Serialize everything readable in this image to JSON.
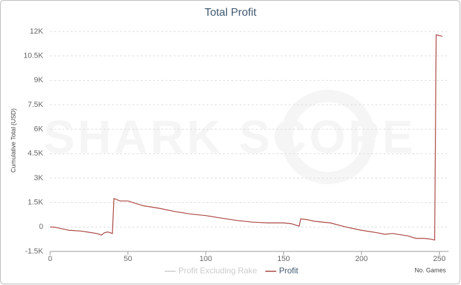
{
  "chart_data": {
    "type": "line",
    "title": "Total Profit",
    "watermark": "SHARK SCOPE",
    "x_label": "No. Games",
    "y_label": "Cumulative Total (USD)",
    "x": [
      0,
      3,
      7,
      10,
      12,
      20,
      30,
      33,
      35,
      37,
      40,
      41,
      45,
      50,
      55,
      60,
      70,
      80,
      90,
      100,
      110,
      120,
      130,
      140,
      150,
      155,
      160,
      161,
      165,
      170,
      180,
      190,
      200,
      210,
      215,
      220,
      230,
      235,
      240,
      245,
      247,
      248,
      252
    ],
    "series": [
      {
        "name": "Profit Excluding Rake",
        "color": "#cccccc",
        "visible": false
      },
      {
        "name": "Profit",
        "color": "#a8403a",
        "visible": true,
        "values": [
          0,
          -10,
          -100,
          -150,
          -200,
          -250,
          -400,
          -500,
          -350,
          -300,
          -400,
          1750,
          1600,
          1600,
          1450,
          1300,
          1150,
          950,
          800,
          700,
          550,
          400,
          300,
          250,
          250,
          200,
          50,
          500,
          450,
          350,
          250,
          0,
          -200,
          -350,
          -450,
          -400,
          -550,
          -700,
          -700,
          -750,
          -800,
          11800,
          11700
        ]
      }
    ],
    "xlim": [
      0,
      256
    ],
    "xticks": [
      0,
      50,
      100,
      150,
      200,
      250
    ],
    "ylim": [
      -1500,
      12000
    ],
    "yticks": [
      {
        "value": -1500,
        "label": "-1.5K"
      },
      0,
      {
        "value": 1500,
        "label": "1.5K"
      },
      {
        "value": 3000,
        "label": "3K"
      },
      {
        "value": 4500,
        "label": "4.5K"
      },
      {
        "value": 6000,
        "label": "6K"
      },
      {
        "value": 7500,
        "label": "7.5K"
      },
      {
        "value": 9000,
        "label": "9K"
      },
      {
        "value": 10500,
        "label": "10.5K"
      },
      {
        "value": 12000,
        "label": "12K"
      }
    ],
    "grid": true
  }
}
